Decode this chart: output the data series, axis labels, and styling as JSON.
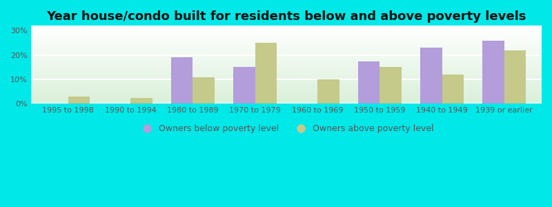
{
  "title": "Year house/condo built for residents below and above poverty levels",
  "categories": [
    "1995 to 1998",
    "1990 to 1994",
    "1980 to 1989",
    "1970 to 1979",
    "1960 to 1969",
    "1950 to 1959",
    "1940 to 1949",
    "1939 or earlier"
  ],
  "below_poverty": [
    0,
    0,
    19.0,
    15.0,
    0,
    17.5,
    23.0,
    26.0
  ],
  "above_poverty": [
    3.0,
    2.5,
    11.0,
    25.0,
    10.0,
    15.0,
    12.0,
    22.0
  ],
  "bar_color_below": "#b39ddb",
  "bar_color_above": "#c5c98a",
  "outer_bg": "#00e8e8",
  "ylabel_ticks": [
    0,
    10,
    20,
    30
  ],
  "ylabel_labels": [
    "0%",
    "10%",
    "20%",
    "30%"
  ],
  "ylim": [
    0,
    32
  ],
  "legend_below": "Owners below poverty level",
  "legend_above": "Owners above poverty level",
  "bar_width": 0.35,
  "title_fontsize": 13,
  "tick_fontsize": 8,
  "legend_fontsize": 9
}
